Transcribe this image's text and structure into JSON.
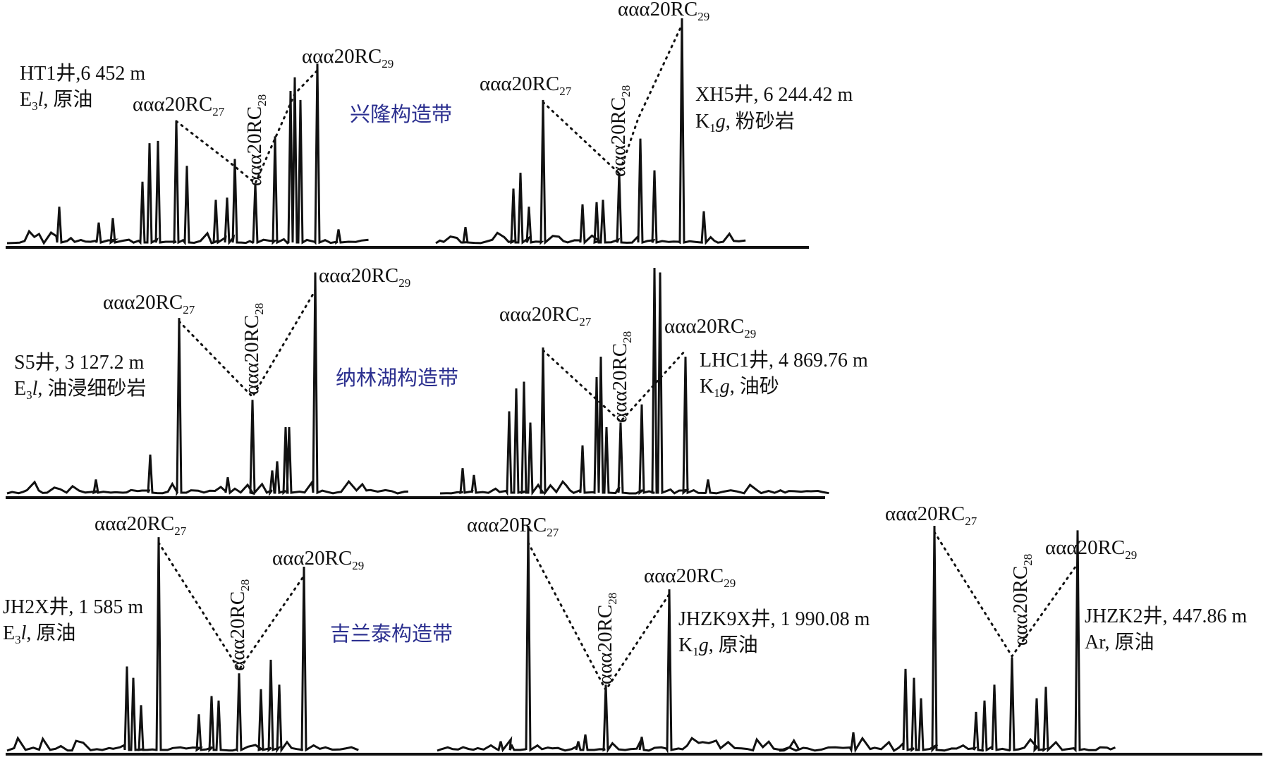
{
  "chart_data": [
    {
      "type": "line",
      "well_label": "HT1井,6 452 m",
      "sample_pre": "E",
      "sample_sub": "3",
      "sample_ital": "l",
      "sample_post": ", 原油",
      "zone": "兴隆构造带",
      "peaks": [
        {
          "main": "ααα20RC",
          "sub": "27",
          "rel_height": 0.55
        },
        {
          "main": "ααα20RC",
          "sub": "28",
          "rel_height": 0.27
        },
        {
          "main": "ααα20RC",
          "sub": "29",
          "rel_height": 0.8
        }
      ]
    },
    {
      "type": "line",
      "well_label": "XH5井, 6 244.42 m",
      "sample_pre": "K",
      "sample_sub": "1",
      "sample_ital": "g",
      "sample_post": ", 粉砂岩",
      "zone": "",
      "peaks": [
        {
          "main": "ααα20RC",
          "sub": "27",
          "rel_height": 0.64
        },
        {
          "main": "ααα20RC",
          "sub": "28",
          "rel_height": 0.32
        },
        {
          "main": "ααα20RC",
          "sub": "29",
          "rel_height": 1.0
        }
      ]
    },
    {
      "type": "line",
      "well_label": "S5井, 3 127.2 m",
      "sample_pre": "E",
      "sample_sub": "3",
      "sample_ital": "l",
      "sample_post": ", 油浸细砂岩",
      "zone": "纳林湖构造带",
      "peaks": [
        {
          "main": "ααα20RC",
          "sub": "27",
          "rel_height": 0.78
        },
        {
          "main": "ααα20RC",
          "sub": "28",
          "rel_height": 0.42
        },
        {
          "main": "ααα20RC",
          "sub": "29",
          "rel_height": 0.98
        }
      ]
    },
    {
      "type": "line",
      "well_label": "LHC1井, 4 869.76 m",
      "sample_pre": "K",
      "sample_sub": "1",
      "sample_ital": "g",
      "sample_post": ", 油砂",
      "zone": "",
      "peaks": [
        {
          "main": "ααα20RC",
          "sub": "27",
          "rel_height": 0.65
        },
        {
          "main": "ααα20RC",
          "sub": "28",
          "rel_height": 0.32
        },
        {
          "main": "ααα20RC",
          "sub": "29",
          "rel_height": 0.61
        }
      ]
    },
    {
      "type": "line",
      "well_label": "JH2X井, 1 585 m",
      "sample_pre": "E",
      "sample_sub": "3",
      "sample_ital": "l",
      "sample_post": ", 原油",
      "zone": "吉兰泰构造带",
      "peaks": [
        {
          "main": "ααα20RC",
          "sub": "27",
          "rel_height": 0.95
        },
        {
          "main": "ααα20RC",
          "sub": "28",
          "rel_height": 0.35
        },
        {
          "main": "ααα20RC",
          "sub": "29",
          "rel_height": 0.82
        }
      ]
    },
    {
      "type": "line",
      "well_label": "JHZK9X井, 1 990.08 m",
      "sample_pre": "K",
      "sample_sub": "1",
      "sample_ital": "g",
      "sample_post": ", 原油",
      "zone": "",
      "peaks": [
        {
          "main": "ααα20RC",
          "sub": "27",
          "rel_height": 1.0
        },
        {
          "main": "ααα20RC",
          "sub": "28",
          "rel_height": 0.3
        },
        {
          "main": "ααα20RC",
          "sub": "29",
          "rel_height": 0.72
        }
      ]
    },
    {
      "type": "line",
      "well_label": "JHZK2井, 447.86 m",
      "sample_pre": "Ar",
      "sample_sub": "",
      "sample_ital": "",
      "sample_post": ", 原油",
      "zone": "",
      "peaks": [
        {
          "main": "ααα20RC",
          "sub": "27",
          "rel_height": 1.0
        },
        {
          "main": "ααα20RC",
          "sub": "28",
          "rel_height": 0.42
        },
        {
          "main": "ααα20RC",
          "sub": "29",
          "rel_height": 0.98
        }
      ]
    }
  ]
}
